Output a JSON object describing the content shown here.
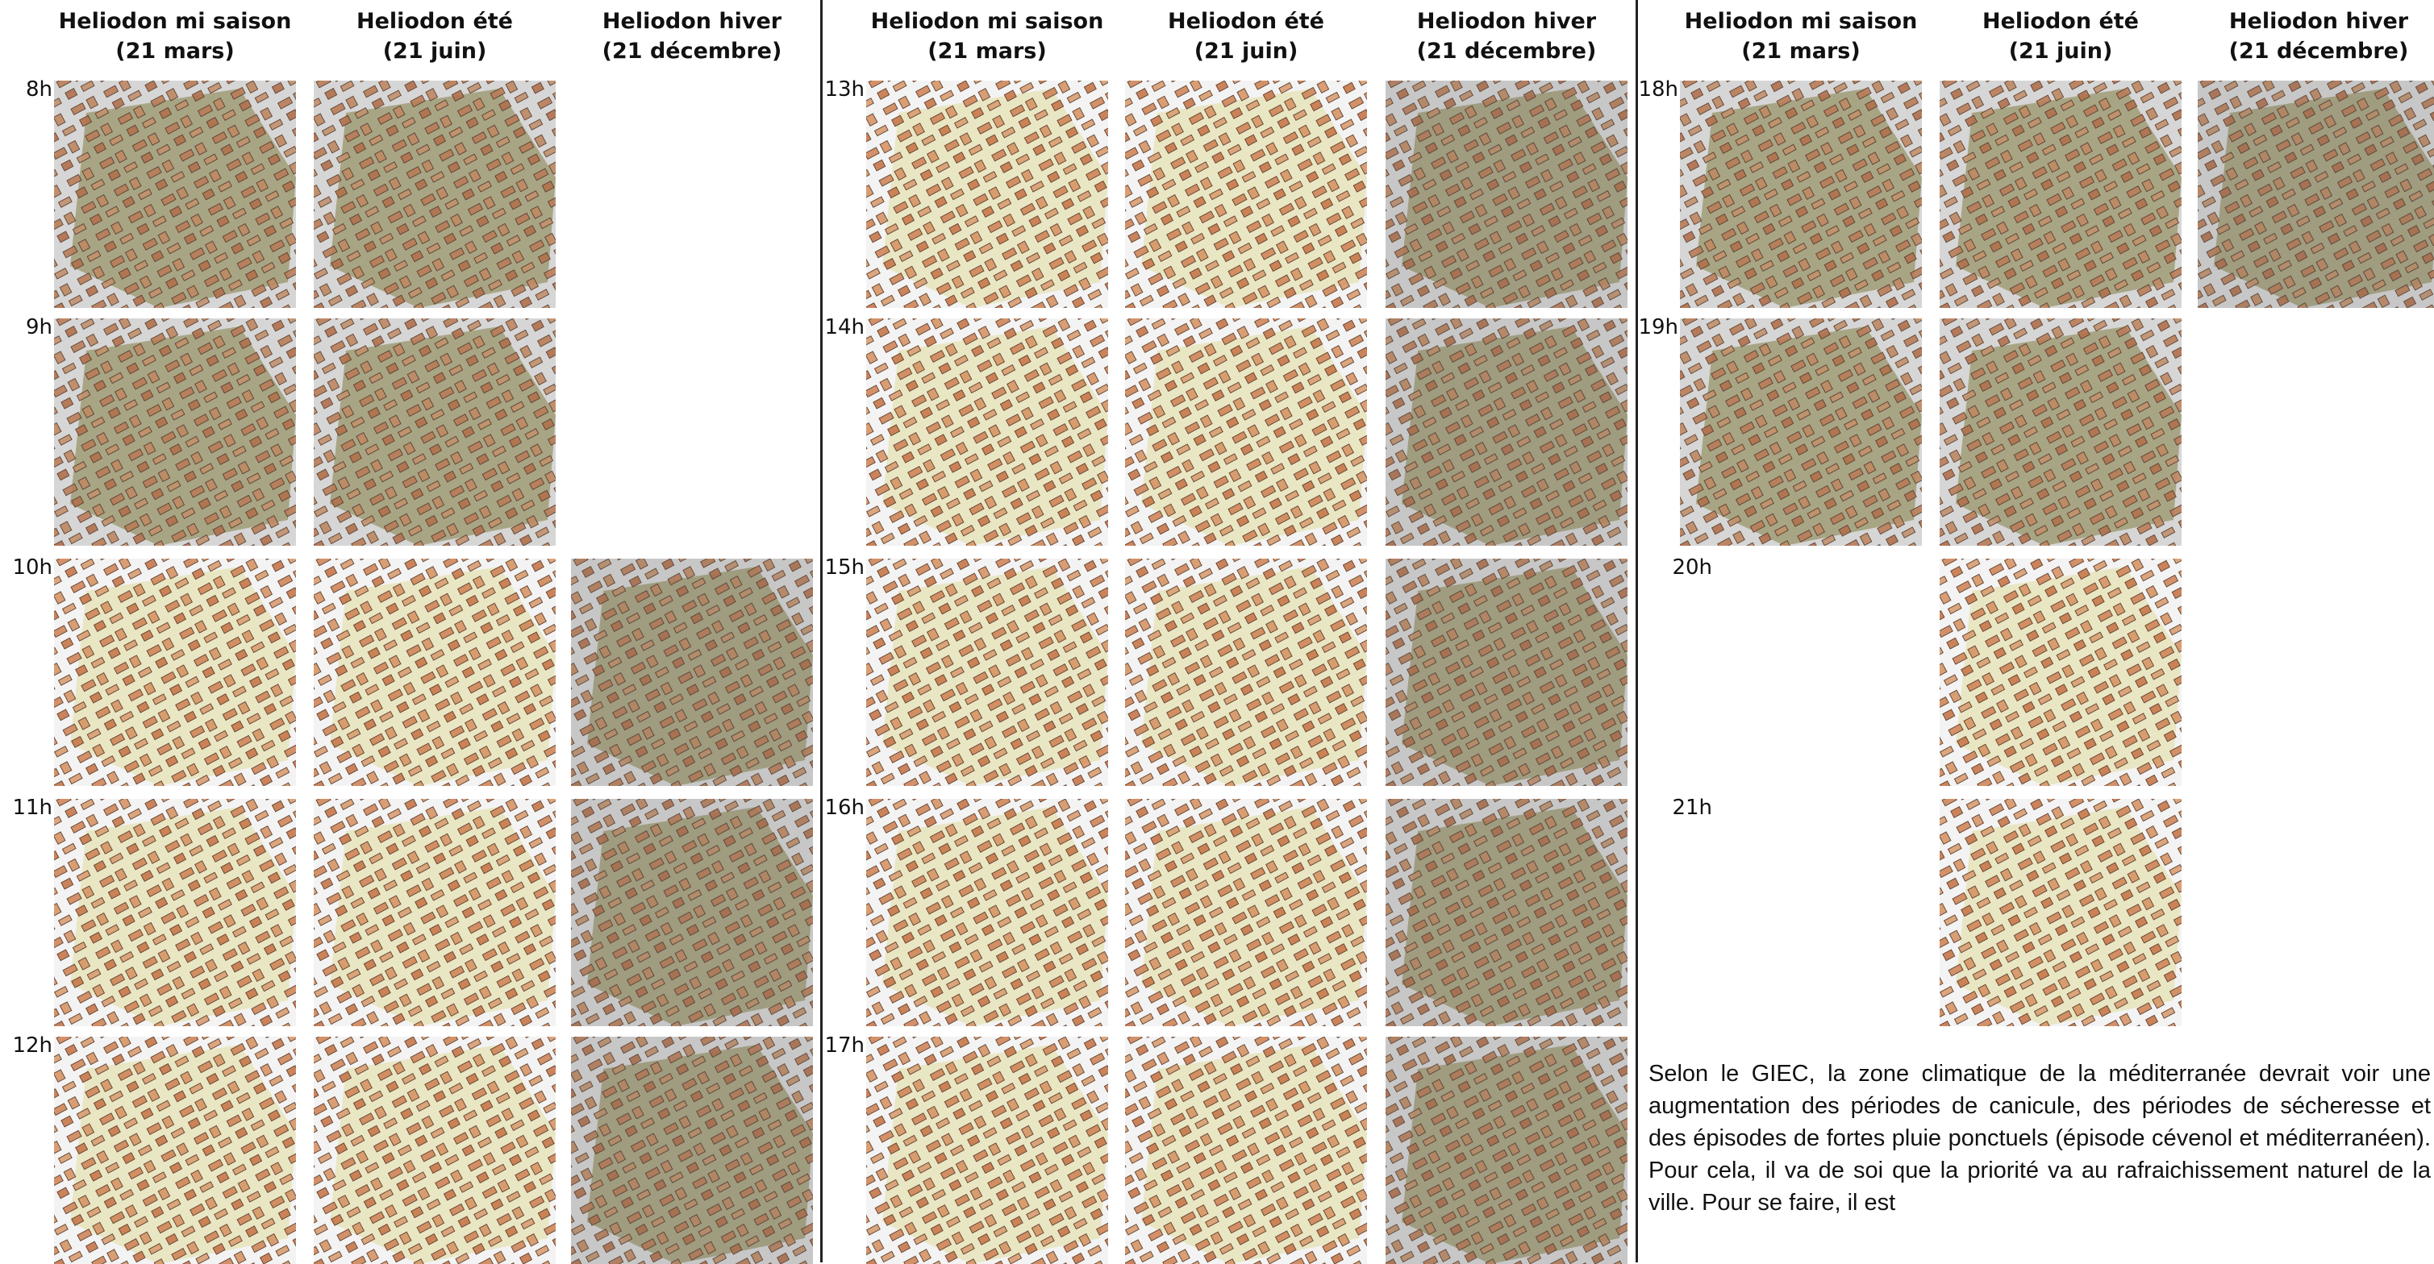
{
  "columns": [
    {
      "title": "Heliodon mi saison",
      "date": "(21 mars)"
    },
    {
      "title": "Heliodon été",
      "date": "(21 juin)"
    },
    {
      "title": "Heliodon hiver",
      "date": "(21 décembre)"
    }
  ],
  "panels": [
    {
      "rows": [
        {
          "hour": "8h"
        },
        {
          "hour": "9h"
        },
        {
          "hour": "10h"
        },
        {
          "hour": "11h"
        },
        {
          "hour": "12h"
        }
      ]
    },
    {
      "rows": [
        {
          "hour": "13h"
        },
        {
          "hour": "14h"
        },
        {
          "hour": "15h"
        },
        {
          "hour": "16h"
        },
        {
          "hour": "17h"
        }
      ]
    },
    {
      "rows": [
        {
          "hour": "18h"
        },
        {
          "hour": "19h"
        },
        {
          "hour": "20h"
        },
        {
          "hour": "21h"
        }
      ]
    }
  ],
  "paragraph": "Selon le GIEC, la zone climatique de la méditerranée devrait voir une augmentation des périodes de canicule, des périodes de sécheresse et des épisodes de fortes pluie ponctuels (épisode cévenol et méditerranéen). Pour cela, il va de soi que la priorité va au rafraichissement naturel de la ville. Pour se faire, il est"
}
